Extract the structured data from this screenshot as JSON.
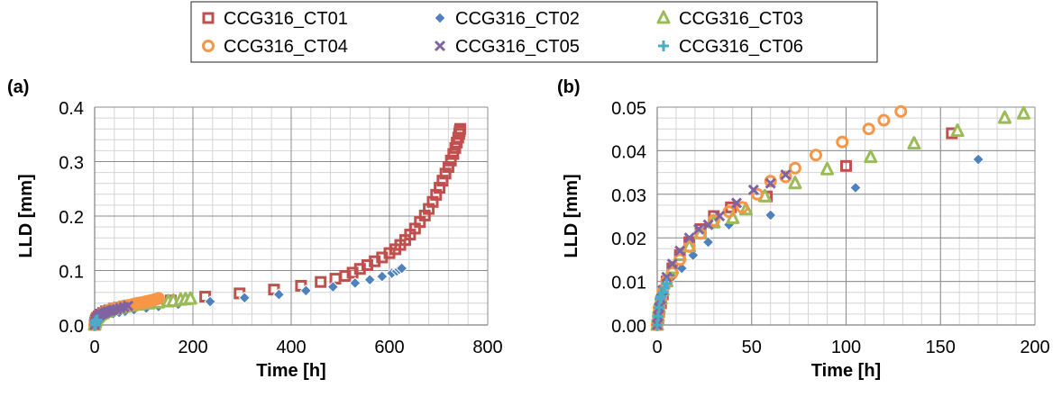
{
  "legend": {
    "placement": "top-center",
    "entries": [
      {
        "name": "CCG316_CT01",
        "color": "#C0504D",
        "marker": "square"
      },
      {
        "name": "CCG316_CT02",
        "color": "#4F81BD",
        "marker": "diamond"
      },
      {
        "name": "CCG316_CT03",
        "color": "#9BBB59",
        "marker": "triangle"
      },
      {
        "name": "CCG316_CT04",
        "color": "#F79646",
        "marker": "circle"
      },
      {
        "name": "CCG316_CT05",
        "color": "#8064A2",
        "marker": "x"
      },
      {
        "name": "CCG316_CT06",
        "color": "#4BACC6",
        "marker": "plus"
      }
    ]
  },
  "chart_data": [
    {
      "type": "scatter",
      "panel_label": "(a)",
      "xlabel": "Time [h]",
      "ylabel": "LLD [mm]",
      "xlim": [
        0,
        800
      ],
      "ylim": [
        0,
        0.4
      ],
      "xticks": [
        0,
        200,
        400,
        600,
        800
      ],
      "yticks": [
        0,
        0.1,
        0.2,
        0.3,
        0.4
      ],
      "xtick_labels": [
        "0",
        "200",
        "400",
        "600",
        "800"
      ],
      "ytick_labels": [
        "0.0",
        "0.1",
        "0.2",
        "0.3",
        "0.4"
      ],
      "grid": true,
      "series": [
        {
          "name": "CCG316_CT01",
          "x": [
            0,
            1,
            2,
            3,
            5,
            8,
            12,
            17,
            23,
            30,
            39,
            49,
            61,
            75,
            90,
            107,
            125,
            155,
            225,
            295,
            365,
            420,
            460,
            490,
            510,
            525,
            540,
            555,
            570,
            585,
            600,
            612,
            622,
            632,
            642,
            652,
            662,
            672,
            680,
            688,
            695,
            702,
            708,
            714,
            720,
            725,
            730,
            734,
            737,
            740,
            742,
            743,
            744
          ],
          "y": [
            0,
            0.004,
            0.007,
            0.01,
            0.013,
            0.016,
            0.019,
            0.022,
            0.025,
            0.027,
            0.03,
            0.032,
            0.034,
            0.036,
            0.038,
            0.04,
            0.042,
            0.045,
            0.052,
            0.058,
            0.065,
            0.072,
            0.079,
            0.085,
            0.09,
            0.096,
            0.103,
            0.11,
            0.117,
            0.124,
            0.132,
            0.139,
            0.147,
            0.156,
            0.166,
            0.177,
            0.189,
            0.201,
            0.213,
            0.226,
            0.239,
            0.252,
            0.265,
            0.278,
            0.29,
            0.302,
            0.314,
            0.325,
            0.335,
            0.344,
            0.351,
            0.356,
            0.36
          ]
        },
        {
          "name": "CCG316_CT02",
          "x": [
            0,
            1,
            2,
            3,
            5,
            8,
            13,
            19,
            27,
            38,
            50,
            62,
            80,
            105,
            130,
            170,
            235,
            305,
            375,
            430,
            485,
            530,
            560,
            585,
            605,
            615,
            620,
            625
          ],
          "y": [
            0,
            0.004,
            0.007,
            0.009,
            0.011,
            0.013,
            0.015,
            0.017,
            0.019,
            0.021,
            0.023,
            0.025,
            0.028,
            0.031,
            0.034,
            0.038,
            0.043,
            0.05,
            0.056,
            0.063,
            0.07,
            0.077,
            0.083,
            0.089,
            0.095,
            0.099,
            0.102,
            0.104
          ]
        },
        {
          "name": "CCG316_CT03",
          "x": [
            0,
            1,
            2,
            3,
            5,
            8,
            12,
            17,
            23,
            30,
            40,
            50,
            60,
            75,
            90,
            110,
            130,
            150,
            160,
            175,
            185,
            195
          ],
          "y": [
            0,
            0.004,
            0.007,
            0.01,
            0.013,
            0.016,
            0.019,
            0.021,
            0.024,
            0.026,
            0.029,
            0.031,
            0.033,
            0.035,
            0.037,
            0.039,
            0.041,
            0.043,
            0.044,
            0.046,
            0.047,
            0.048
          ]
        },
        {
          "name": "CCG316_CT04",
          "x": [
            0,
            1,
            2,
            3,
            5,
            8,
            12,
            17,
            23,
            30,
            38,
            45,
            53,
            60,
            68,
            75,
            82,
            88,
            94,
            100,
            105,
            110,
            115,
            120,
            124,
            128,
            130
          ],
          "y": [
            0,
            0.004,
            0.007,
            0.01,
            0.013,
            0.016,
            0.019,
            0.022,
            0.024,
            0.027,
            0.029,
            0.031,
            0.033,
            0.035,
            0.036,
            0.037,
            0.039,
            0.04,
            0.041,
            0.042,
            0.043,
            0.044,
            0.045,
            0.046,
            0.047,
            0.048,
            0.049
          ]
        },
        {
          "name": "CCG316_CT05",
          "x": [
            0,
            1,
            2,
            3,
            5,
            8,
            12,
            17,
            22,
            27,
            33,
            38,
            45,
            52,
            60,
            68
          ],
          "y": [
            0,
            0.004,
            0.007,
            0.01,
            0.013,
            0.016,
            0.019,
            0.021,
            0.023,
            0.025,
            0.026,
            0.028,
            0.029,
            0.031,
            0.033,
            0.035
          ]
        },
        {
          "name": "CCG316_CT06",
          "x": [
            0,
            0.5,
            1,
            1.5,
            2,
            3,
            4,
            5
          ],
          "y": [
            0,
            0.002,
            0.003,
            0.005,
            0.006,
            0.007,
            0.008,
            0.009
          ]
        }
      ]
    },
    {
      "type": "scatter",
      "panel_label": "(b)",
      "xlabel": "Time [h]",
      "ylabel": "LLD [mm]",
      "xlim": [
        0,
        200
      ],
      "ylim": [
        0,
        0.05
      ],
      "xticks": [
        0,
        50,
        100,
        150,
        200
      ],
      "yticks": [
        0,
        0.01,
        0.02,
        0.03,
        0.04,
        0.05
      ],
      "xtick_labels": [
        "0",
        "50",
        "100",
        "150",
        "200"
      ],
      "ytick_labels": [
        "0.00",
        "0.01",
        "0.02",
        "0.03",
        "0.04",
        "0.05"
      ],
      "grid": true,
      "series": [
        {
          "name": "CCG316_CT01",
          "x": [
            0,
            0.5,
            1,
            2,
            3,
            5,
            8,
            12,
            17,
            23,
            30,
            39,
            58,
            100,
            156
          ],
          "y": [
            0,
            0.0015,
            0.003,
            0.005,
            0.007,
            0.01,
            0.013,
            0.016,
            0.019,
            0.022,
            0.025,
            0.027,
            0.0295,
            0.0365,
            0.044
          ]
        },
        {
          "name": "CCG316_CT02",
          "x": [
            0,
            0.5,
            1,
            2,
            3,
            5,
            8,
            13,
            19,
            27,
            38,
            60,
            105,
            170
          ],
          "y": [
            0,
            0.002,
            0.004,
            0.006,
            0.007,
            0.009,
            0.011,
            0.013,
            0.016,
            0.019,
            0.023,
            0.0252,
            0.0315,
            0.038
          ]
        },
        {
          "name": "CCG316_CT03",
          "x": [
            0,
            0.5,
            1,
            2,
            3,
            5,
            8,
            12,
            17,
            23,
            30,
            40,
            47,
            57,
            73,
            90,
            113,
            136,
            159,
            184,
            194
          ],
          "y": [
            0,
            0.002,
            0.004,
            0.006,
            0.008,
            0.01,
            0.013,
            0.016,
            0.018,
            0.021,
            0.0235,
            0.0245,
            0.0265,
            0.0295,
            0.0325,
            0.0357,
            0.0385,
            0.0416,
            0.0445,
            0.0475,
            0.0485
          ]
        },
        {
          "name": "CCG316_CT04",
          "x": [
            0,
            0.5,
            1,
            2,
            3,
            5,
            8,
            12,
            17,
            23,
            30,
            38,
            45,
            53,
            60,
            68,
            73,
            84,
            98,
            112,
            120,
            129
          ],
          "y": [
            0,
            0.002,
            0.004,
            0.006,
            0.008,
            0.01,
            0.012,
            0.015,
            0.018,
            0.021,
            0.024,
            0.026,
            0.027,
            0.03,
            0.033,
            0.034,
            0.036,
            0.039,
            0.042,
            0.045,
            0.047,
            0.049
          ]
        },
        {
          "name": "CCG316_CT05",
          "x": [
            0,
            0.5,
            1,
            2,
            3,
            5,
            8,
            12,
            17,
            22,
            27,
            33,
            42,
            51,
            60,
            68
          ],
          "y": [
            0,
            0.002,
            0.004,
            0.006,
            0.008,
            0.011,
            0.014,
            0.017,
            0.02,
            0.022,
            0.023,
            0.025,
            0.028,
            0.031,
            0.0325,
            0.0345
          ]
        },
        {
          "name": "CCG316_CT06",
          "x": [
            0,
            0.5,
            1,
            1.5,
            2,
            3,
            4,
            5
          ],
          "y": [
            0,
            0.002,
            0.004,
            0.006,
            0.0065,
            0.0075,
            0.0085,
            0.0095
          ]
        }
      ]
    }
  ]
}
